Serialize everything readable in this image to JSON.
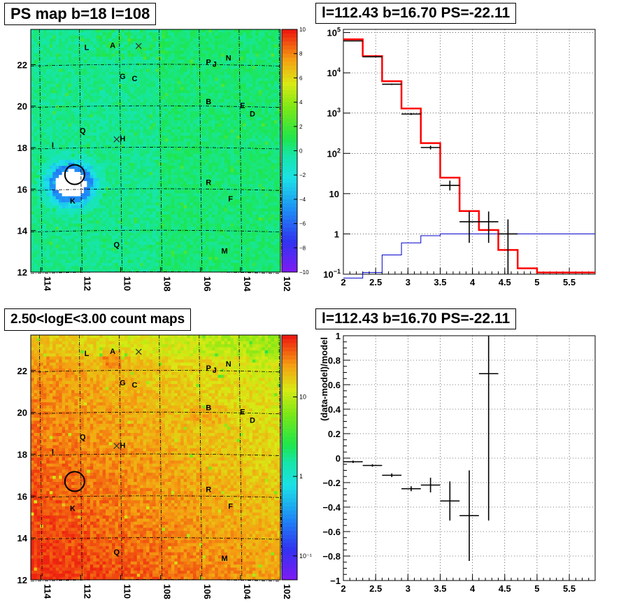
{
  "titles": {
    "ps_map": "PS map b=18 l=108",
    "spectrum": "l=112.43 b=16.70 PS=-22.11",
    "count_map": "2.50<logE<3.00 count maps",
    "residual": "l=112.43 b=16.70 PS=-22.11"
  },
  "residual_ylabel": "(data-model)/model",
  "colors": {
    "data": "#000000",
    "model": "#ff0000",
    "background_model": "#0000cc",
    "grid": "#000000"
  },
  "chart_data": [
    {
      "type": "heatmap",
      "name": "ps_map",
      "x_ticks": [
        "114",
        "112",
        "110",
        "108",
        "106",
        "104",
        "102"
      ],
      "x_range": [
        114.5,
        102
      ],
      "y_ticks": [
        "12",
        "14",
        "16",
        "18",
        "20",
        "22"
      ],
      "y_range": [
        12,
        23.7
      ],
      "colorbar": {
        "ticks": [
          "10",
          "8",
          "6",
          "4",
          "2",
          "0",
          "−2",
          "−4",
          "−6",
          "−8",
          "−10"
        ],
        "range": [
          -10,
          10
        ]
      },
      "source_labels": [
        {
          "text": "L",
          "l": 111.7,
          "b": 22.7
        },
        {
          "text": "A",
          "l": 110.4,
          "b": 22.8
        },
        {
          "text": "P",
          "l": 105.6,
          "b": 22.0
        },
        {
          "text": "J",
          "l": 105.3,
          "b": 21.9
        },
        {
          "text": "N",
          "l": 104.6,
          "b": 22.2
        },
        {
          "text": "G",
          "l": 109.9,
          "b": 21.3
        },
        {
          "text": "C",
          "l": 109.3,
          "b": 21.2
        },
        {
          "text": "B",
          "l": 105.6,
          "b": 20.1
        },
        {
          "text": "E",
          "l": 103.9,
          "b": 19.9
        },
        {
          "text": "D",
          "l": 103.4,
          "b": 19.5
        },
        {
          "text": "Q",
          "l": 111.9,
          "b": 18.7
        },
        {
          "text": "H",
          "l": 109.9,
          "b": 18.3
        },
        {
          "text": "I",
          "l": 113.4,
          "b": 18.0
        },
        {
          "text": "R",
          "l": 105.6,
          "b": 16.2
        },
        {
          "text": "F",
          "l": 104.5,
          "b": 15.4
        },
        {
          "text": "K",
          "l": 112.4,
          "b": 15.3
        },
        {
          "text": "Q",
          "l": 110.2,
          "b": 13.2
        },
        {
          "text": "M",
          "l": 104.8,
          "b": 12.9
        }
      ],
      "cross_markers": [
        {
          "l": 109.1,
          "b": 22.9
        },
        {
          "l": 110.2,
          "b": 18.4
        }
      ],
      "circle_center": {
        "l": 112.3,
        "b": 16.7
      }
    },
    {
      "type": "line",
      "name": "spectrum",
      "x_ticks": [
        "2",
        "2.5",
        "3",
        "3.5",
        "4",
        "4.5",
        "5",
        "5.5"
      ],
      "xlim": [
        2,
        5.9
      ],
      "y_scale": "log",
      "ylim": [
        0.1,
        120000
      ],
      "y_ticks": [
        {
          "v": 100000,
          "base": "10",
          "exp": "5"
        },
        {
          "v": 10000,
          "base": "10",
          "exp": "4"
        },
        {
          "v": 1000,
          "base": "10",
          "exp": "3"
        },
        {
          "v": 100,
          "base": "10",
          "exp": "2"
        },
        {
          "v": 10,
          "base": "10",
          "exp": ""
        },
        {
          "v": 1,
          "base": "1",
          "exp": ""
        },
        {
          "v": 0.1,
          "base": "10",
          "exp": "−1"
        }
      ],
      "series": [
        {
          "kind": "model",
          "bins": [
            [
              2.0,
              2.3,
              68000
            ],
            [
              2.3,
              2.6,
              26000
            ],
            [
              2.6,
              2.9,
              6200
            ],
            [
              2.9,
              3.2,
              1300
            ],
            [
              3.2,
              3.5,
              180
            ],
            [
              3.5,
              3.8,
              25
            ],
            [
              3.8,
              4.1,
              3.7
            ],
            [
              4.1,
              4.4,
              1.25
            ],
            [
              4.4,
              4.7,
              0.4
            ],
            [
              4.7,
              5.0,
              0.14
            ],
            [
              5.0,
              5.9,
              0.11
            ]
          ]
        },
        {
          "kind": "background",
          "bins": [
            [
              2.0,
              2.3,
              0.08
            ],
            [
              2.3,
              2.6,
              0.11
            ],
            [
              2.6,
              2.9,
              0.3
            ],
            [
              2.9,
              3.2,
              0.6
            ],
            [
              3.2,
              3.5,
              0.9
            ],
            [
              3.5,
              3.8,
              1.0
            ],
            [
              3.8,
              5.9,
              1.0
            ]
          ]
        },
        {
          "kind": "data",
          "points": [
            {
              "x": 2.15,
              "y": 62000,
              "lo": 61000,
              "hi": 63000
            },
            {
              "x": 2.45,
              "y": 25000,
              "lo": 24500,
              "hi": 25500
            },
            {
              "x": 2.75,
              "y": 5200,
              "lo": 5000,
              "hi": 5400
            },
            {
              "x": 3.05,
              "y": 950,
              "lo": 900,
              "hi": 1000
            },
            {
              "x": 3.35,
              "y": 140,
              "lo": 125,
              "hi": 155
            },
            {
              "x": 3.65,
              "y": 16,
              "lo": 12,
              "hi": 21
            },
            {
              "x": 3.95,
              "y": 2,
              "lo": 0.6,
              "hi": 3.6
            },
            {
              "x": 4.25,
              "y": 2,
              "lo": 0.6,
              "hi": 3.6
            },
            {
              "x": 4.55,
              "y": 1,
              "lo": 0.1,
              "hi": 2.3
            }
          ]
        }
      ]
    },
    {
      "type": "heatmap",
      "name": "count_map",
      "x_ticks": [
        "114",
        "112",
        "110",
        "108",
        "106",
        "104",
        "102"
      ],
      "x_range": [
        114.5,
        102
      ],
      "y_ticks": [
        "12",
        "14",
        "16",
        "18",
        "20",
        "22"
      ],
      "y_range": [
        12,
        23.7
      ],
      "colorbar": {
        "ticks": [
          {
            "v": 10,
            "t": "10"
          },
          {
            "v": 1,
            "t": "1"
          },
          {
            "v": 0.1,
            "t": "10⁻¹"
          }
        ],
        "log_range": [
          0.05,
          60
        ]
      },
      "circle_center": {
        "l": 112.3,
        "b": 16.7
      }
    },
    {
      "type": "scatter",
      "name": "residual",
      "x_ticks": [
        "2",
        "2.5",
        "3",
        "3.5",
        "4",
        "4.5",
        "5",
        "5.5"
      ],
      "xlim": [
        2,
        5.9
      ],
      "y_ticks": [
        "1",
        "0.8",
        "0.6",
        "0.4",
        "0.2",
        "0",
        "−0.2",
        "−0.4",
        "−0.6",
        "−0.8",
        "−1"
      ],
      "ylim": [
        -1,
        1
      ],
      "ylabel": "(data-model)/model",
      "points": [
        {
          "x": 2.15,
          "y": -0.03,
          "err": 0.01
        },
        {
          "x": 2.45,
          "y": -0.06,
          "err": 0.01
        },
        {
          "x": 2.75,
          "y": -0.14,
          "err": 0.015
        },
        {
          "x": 3.05,
          "y": -0.25,
          "err": 0.02
        },
        {
          "x": 3.35,
          "y": -0.22,
          "err": 0.06
        },
        {
          "x": 3.65,
          "y": -0.35,
          "err": 0.16
        },
        {
          "x": 3.95,
          "y": -0.47,
          "err": 0.37
        },
        {
          "x": 4.25,
          "y": 0.69,
          "err": 1.2
        }
      ]
    }
  ]
}
